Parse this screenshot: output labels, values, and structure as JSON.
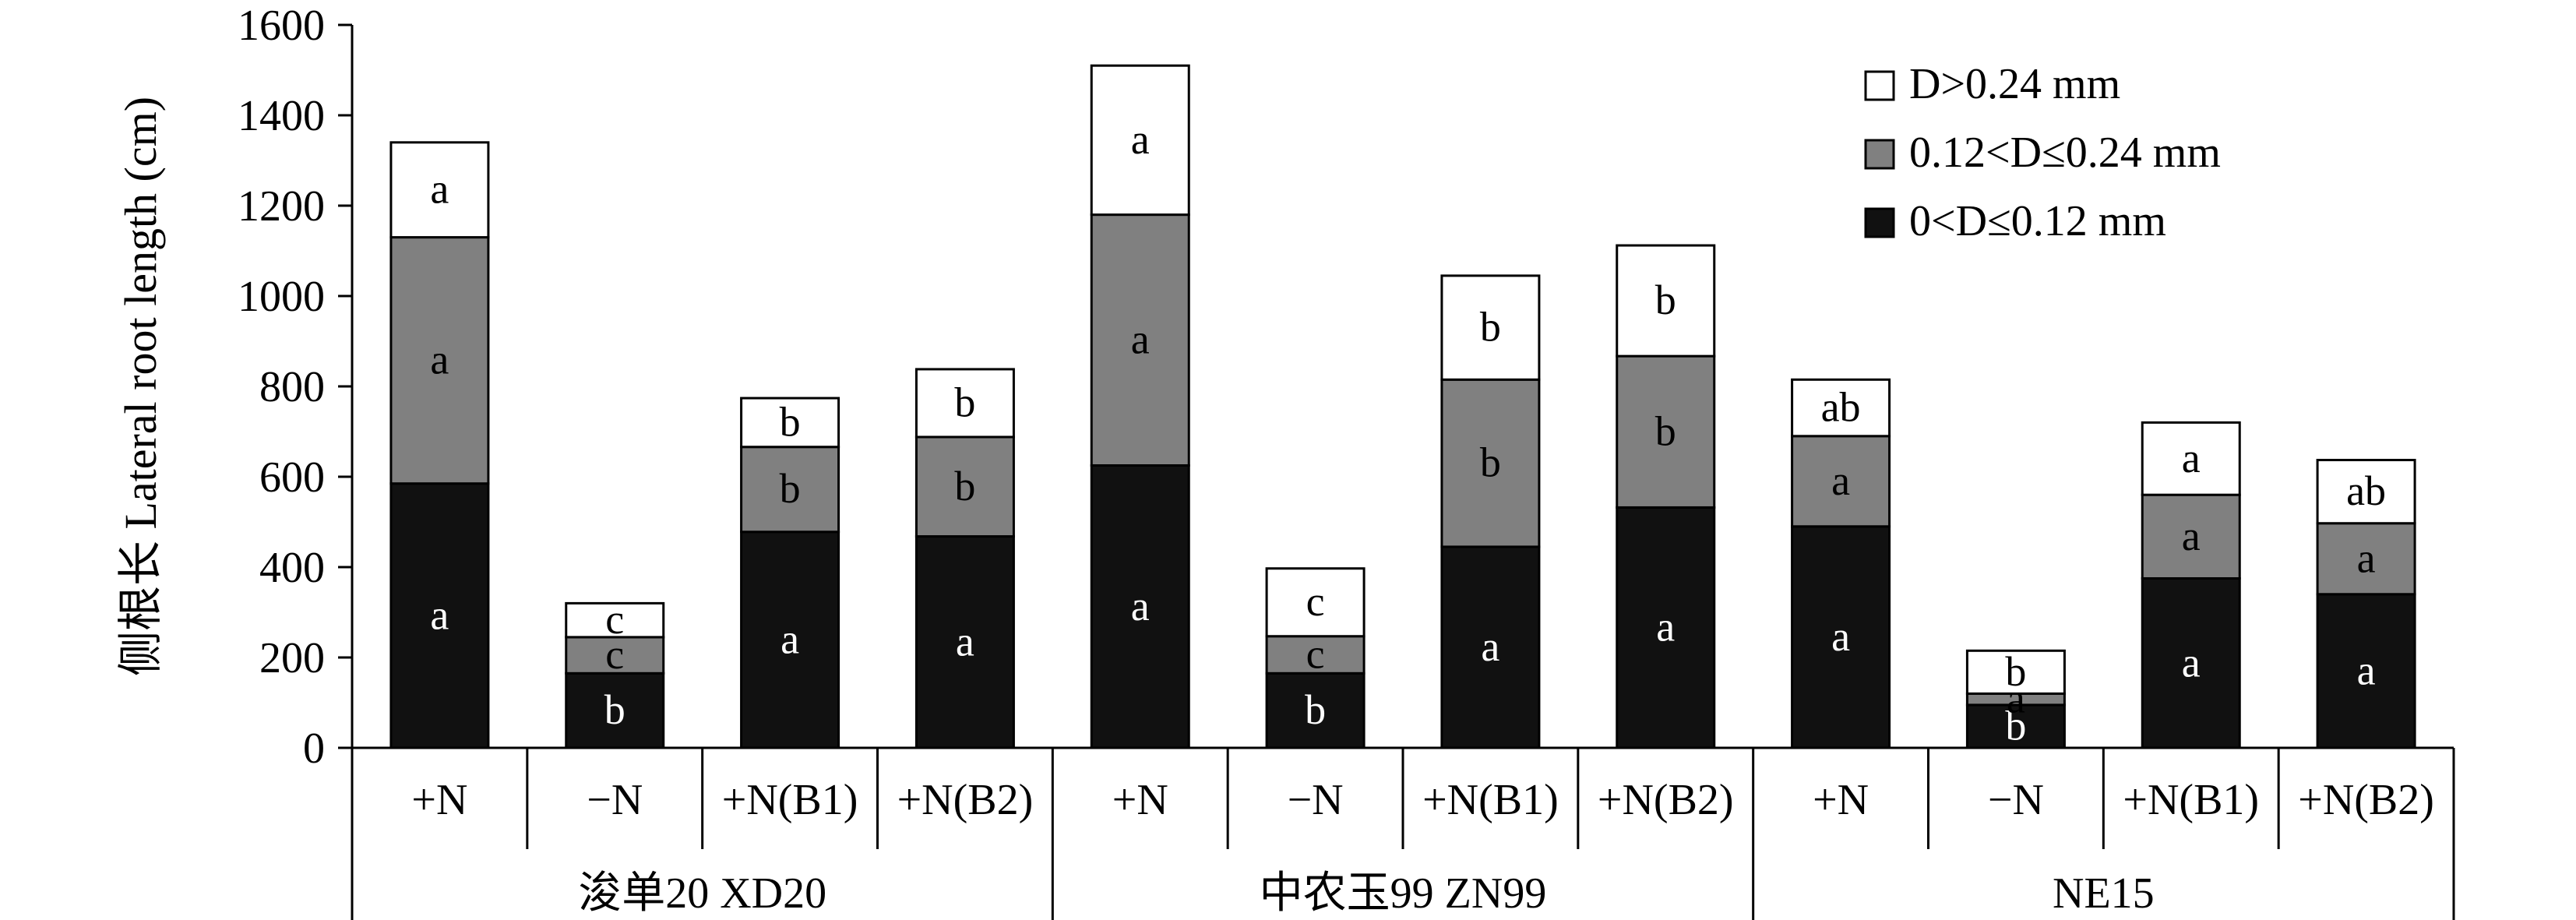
{
  "chart_data": {
    "type": "bar",
    "stacked": true,
    "ylabel": "侧根长 Lateral root length (cm)",
    "ylim": [
      0,
      1600
    ],
    "yticks": [
      0,
      200,
      400,
      600,
      800,
      1000,
      1200,
      1400,
      1600
    ],
    "legend_position": "top-right",
    "groups": [
      {
        "name": "浚单20 XD20",
        "categories": [
          "+N",
          "−N",
          "+N(B1)",
          "+N(B2)"
        ]
      },
      {
        "name": "中农玉99 ZN99",
        "categories": [
          "+N",
          "−N",
          "+N(B1)",
          "+N(B2)"
        ]
      },
      {
        "name": "NE15",
        "categories": [
          "+N",
          "−N",
          "+N(B1)",
          "+N(B2)"
        ]
      }
    ],
    "series": [
      {
        "name": "0<D≤0.12 mm",
        "color": "#111111",
        "label_color": "#ffffff",
        "values": [
          585,
          165,
          478,
          468,
          625,
          165,
          445,
          532,
          490,
          95,
          375,
          340
        ],
        "letters": [
          "a",
          "b",
          "a",
          "a",
          "a",
          "b",
          "a",
          "a",
          "a",
          "b",
          "a",
          "a"
        ]
      },
      {
        "name": "0.12<D≤0.24 mm",
        "color": "#808080",
        "label_color": "#000000",
        "values": [
          545,
          80,
          188,
          220,
          555,
          82,
          370,
          335,
          200,
          25,
          185,
          157
        ],
        "letters": [
          "a",
          "c",
          "b",
          "b",
          "a",
          "c",
          "b",
          "b",
          "a",
          "a",
          "a",
          "a"
        ]
      },
      {
        "name": "D>0.24 mm",
        "color": "#ffffff",
        "label_color": "#000000",
        "values": [
          210,
          75,
          108,
          150,
          330,
          150,
          230,
          245,
          125,
          95,
          160,
          140
        ],
        "letters": [
          "a",
          "c",
          "b",
          "b",
          "a",
          "c",
          "b",
          "b",
          "ab",
          "b",
          "a",
          "ab"
        ]
      }
    ]
  }
}
